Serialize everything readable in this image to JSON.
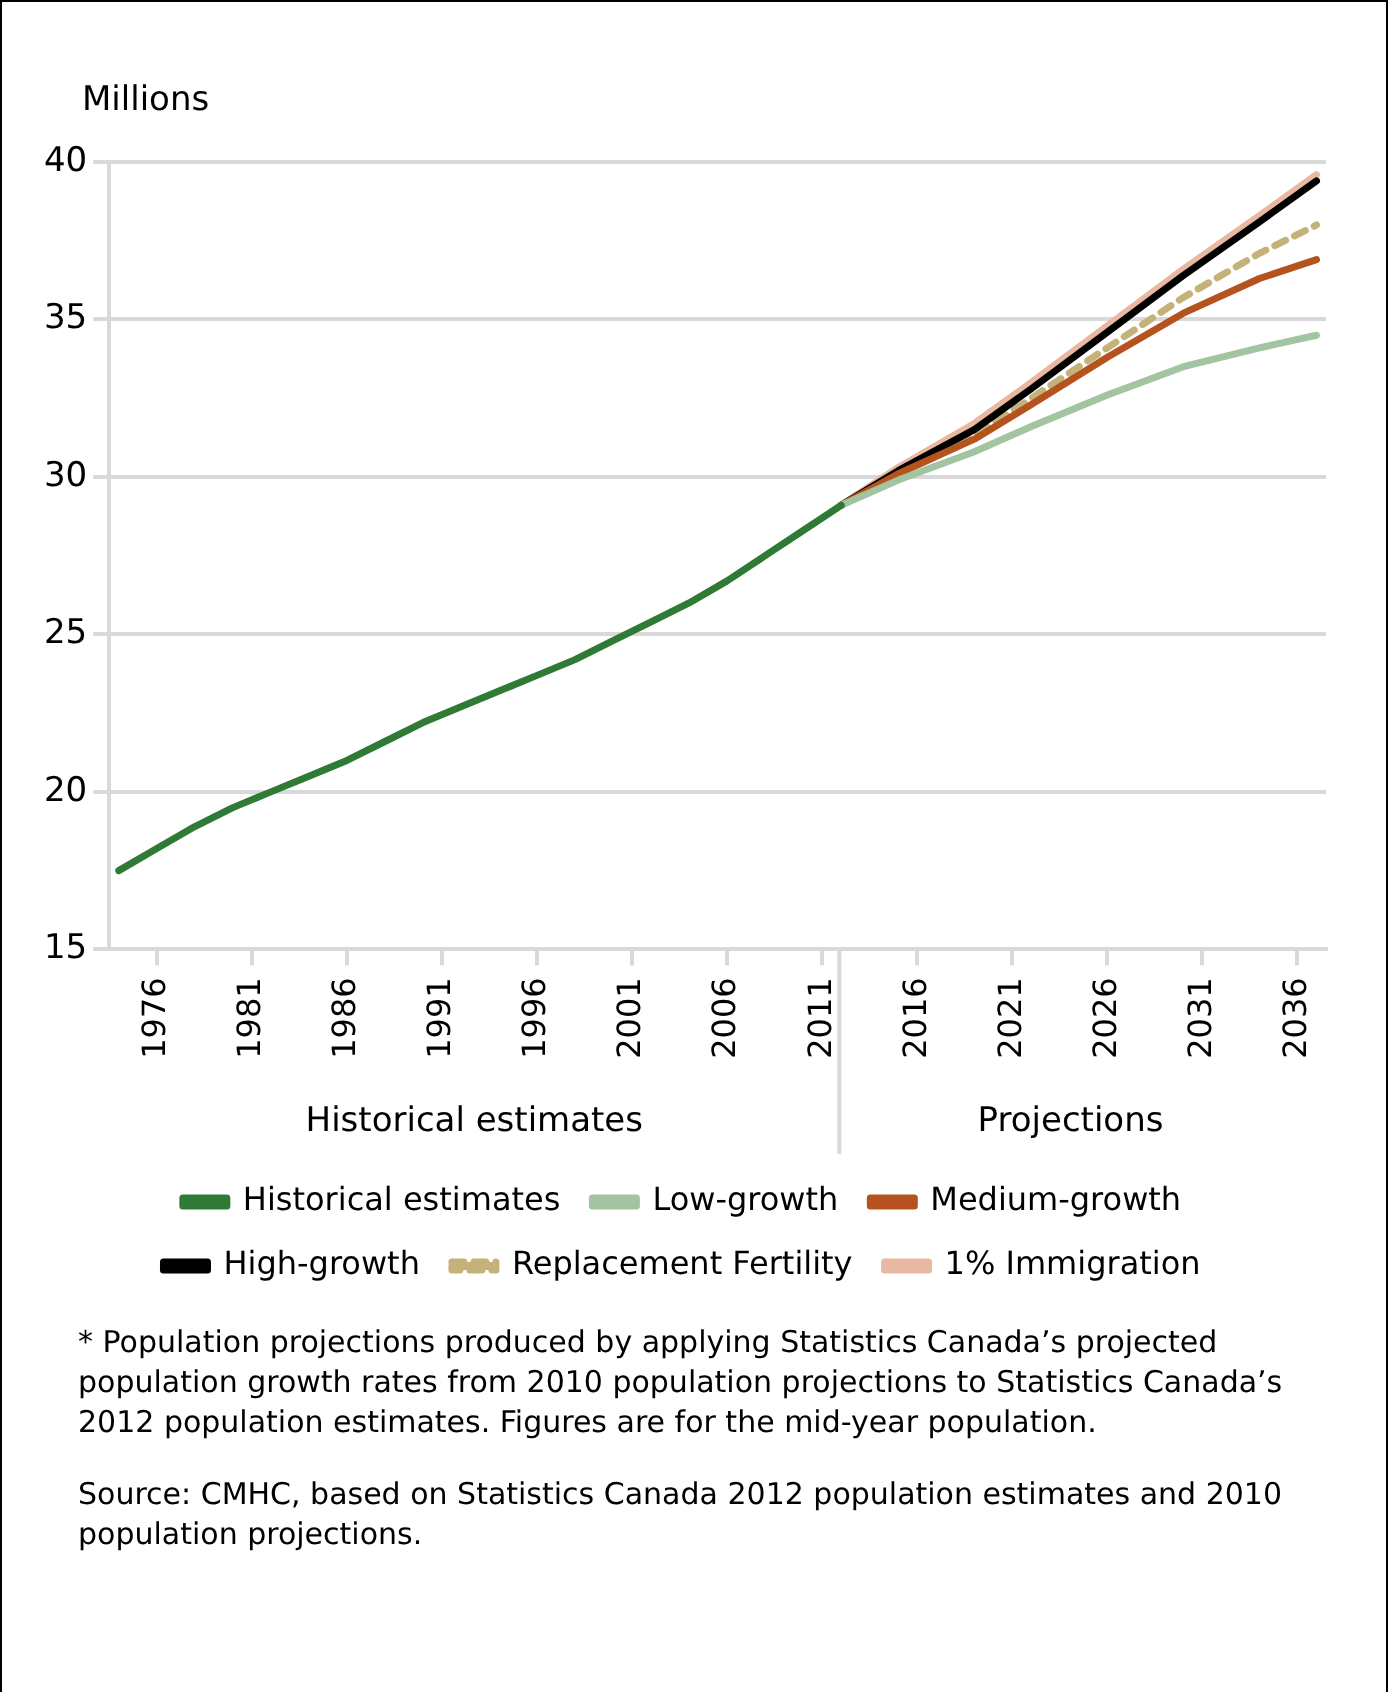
{
  "chart_data": {
    "type": "line",
    "ylabel": "Millions",
    "xlim": [
      1973.5,
      2037.5
    ],
    "xticks": [
      1976,
      1981,
      1986,
      1991,
      1996,
      2001,
      2006,
      2011,
      2016,
      2021,
      2026,
      2031,
      2036
    ],
    "ylim": [
      15,
      40
    ],
    "yticks": [
      15,
      20,
      25,
      30,
      35,
      40
    ],
    "grid": "y",
    "legend": "bottom",
    "marker": "none",
    "series": [
      {
        "name": "Historical estimates",
        "color": "#2f7a35",
        "x": [
          1974,
          1976,
          1978,
          1980,
          1982,
          1984,
          1986,
          1988,
          1990,
          1992,
          1994,
          1996,
          1998,
          2000,
          2002,
          2004,
          2006,
          2008,
          2010,
          2012
        ],
        "values": [
          17.5,
          18.2,
          18.9,
          19.5,
          20.0,
          20.5,
          21.0,
          21.6,
          22.2,
          22.7,
          23.2,
          23.7,
          24.2,
          24.8,
          25.4,
          26.0,
          26.7,
          27.5,
          28.3,
          29.1
        ]
      },
      {
        "name": "Low-growth",
        "color": "#a3c4a0",
        "x": [
          2012,
          2015,
          2019,
          2022,
          2026,
          2030,
          2034,
          2037
        ],
        "values": [
          29.1,
          29.9,
          30.8,
          31.6,
          32.6,
          33.5,
          34.1,
          34.5
        ]
      },
      {
        "name": "Medium-growth",
        "color": "#b5531e",
        "x": [
          2012,
          2015,
          2019,
          2022,
          2026,
          2030,
          2034,
          2037
        ],
        "values": [
          29.1,
          30.1,
          31.2,
          32.3,
          33.8,
          35.2,
          36.3,
          36.9
        ]
      },
      {
        "name": "High-growth",
        "color": "#000000",
        "x": [
          2012,
          2015,
          2019,
          2022,
          2026,
          2030,
          2034,
          2037
        ],
        "values": [
          29.1,
          30.2,
          31.5,
          32.8,
          34.6,
          36.4,
          38.1,
          39.4
        ]
      },
      {
        "name": "Replacement Fertility",
        "color": "#c4b27a",
        "line_style": "dashed",
        "x": [
          2012,
          2015,
          2019,
          2022,
          2026,
          2030,
          2034,
          2037
        ],
        "values": [
          29.1,
          30.1,
          31.3,
          32.5,
          34.1,
          35.7,
          37.1,
          38.0
        ]
      },
      {
        "name": "1% Immigration",
        "color": "#e8b9a0",
        "x": [
          2012,
          2015,
          2019,
          2022,
          2026,
          2030,
          2034,
          2037
        ],
        "values": [
          29.1,
          30.3,
          31.7,
          33.0,
          34.8,
          36.6,
          38.3,
          39.6
        ]
      }
    ],
    "annotations": [
      "Historical estimates",
      "Projections",
      "* Population projections produced by applying Statistics Canada’s projected population growth rates from 2010 population projections to Statistics Canada’s 2012 population estimates. Figures are for the mid-year population.",
      "Source: CMHC, based on Statistics Canada 2012 population estimates and 2010 population projections."
    ]
  }
}
